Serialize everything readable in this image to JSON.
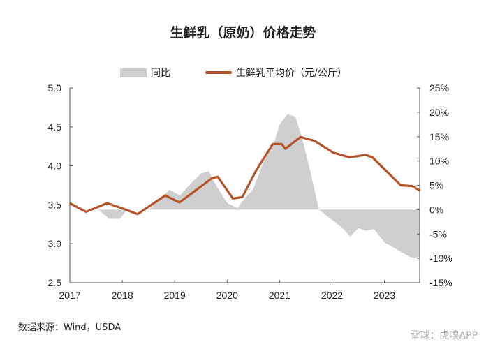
{
  "chart_data": {
    "type": "line",
    "title": "生鲜乳（原奶）价格走势",
    "legend": [
      "同比",
      "生鲜乳平均价（元/公斤）"
    ],
    "legend_placement": "top",
    "xlabel": "",
    "x_ticks": [
      "2017",
      "2018",
      "2019",
      "2020",
      "2021",
      "2022",
      "2023"
    ],
    "xlim": [
      2017,
      2023.68
    ],
    "y_left": {
      "label": "",
      "lim": [
        2.5,
        5.0
      ],
      "ticks": [
        "2.5",
        "3.0",
        "3.5",
        "4.0",
        "4.5",
        "5.0"
      ]
    },
    "y_right": {
      "label": "",
      "lim": [
        -15,
        25
      ],
      "ticks": [
        "-15%",
        "-10%",
        "-5%",
        "0%",
        "5%",
        "10%",
        "15%",
        "20%",
        "25%"
      ]
    },
    "grid": false,
    "series": [
      {
        "name": "生鲜乳平均价（元/公斤）",
        "type": "line",
        "axis": "left",
        "color": "#b5532a",
        "x": [
          2017.0,
          2017.31,
          2017.71,
          2017.98,
          2018.29,
          2018.82,
          2019.09,
          2019.71,
          2019.82,
          2020.11,
          2020.29,
          2020.56,
          2020.87,
          2021.04,
          2021.11,
          2021.4,
          2021.67,
          2022.02,
          2022.33,
          2022.64,
          2022.77,
          2023.31,
          2023.53,
          2023.68
        ],
        "values": [
          3.52,
          3.41,
          3.52,
          3.46,
          3.38,
          3.62,
          3.53,
          3.84,
          3.86,
          3.58,
          3.6,
          3.95,
          4.28,
          4.28,
          4.22,
          4.37,
          4.32,
          4.17,
          4.11,
          4.14,
          4.11,
          3.75,
          3.74,
          3.68
        ]
      },
      {
        "name": "同比",
        "type": "area",
        "axis": "right",
        "color": "#cfcfcf",
        "x": [
          2017.0,
          2017.55,
          2017.75,
          2017.95,
          2018.1,
          2018.5,
          2018.9,
          2019.1,
          2019.3,
          2019.5,
          2019.65,
          2019.8,
          2020.0,
          2020.2,
          2020.3,
          2020.5,
          2020.7,
          2020.9,
          2021.0,
          2021.15,
          2021.3,
          2021.45,
          2021.6,
          2021.75,
          2022.0,
          2022.2,
          2022.35,
          2022.5,
          2022.65,
          2022.8,
          2023.0,
          2023.3,
          2023.5,
          2023.68
        ],
        "values": [
          0,
          0,
          -1.9,
          -1.9,
          0,
          0,
          4.1,
          2.9,
          5.3,
          7.4,
          7.9,
          4.8,
          1.4,
          0.3,
          1.9,
          4.3,
          10,
          13.9,
          17.5,
          19.6,
          19.1,
          13.9,
          7.2,
          0,
          -2.1,
          -3.8,
          -5.5,
          -3.8,
          -4.3,
          -4,
          -6.7,
          -8.6,
          -9.8,
          -9.8
        ]
      }
    ],
    "source": "数据来源：Wind，USDA"
  },
  "watermark": "雪球：虎嗅APP"
}
